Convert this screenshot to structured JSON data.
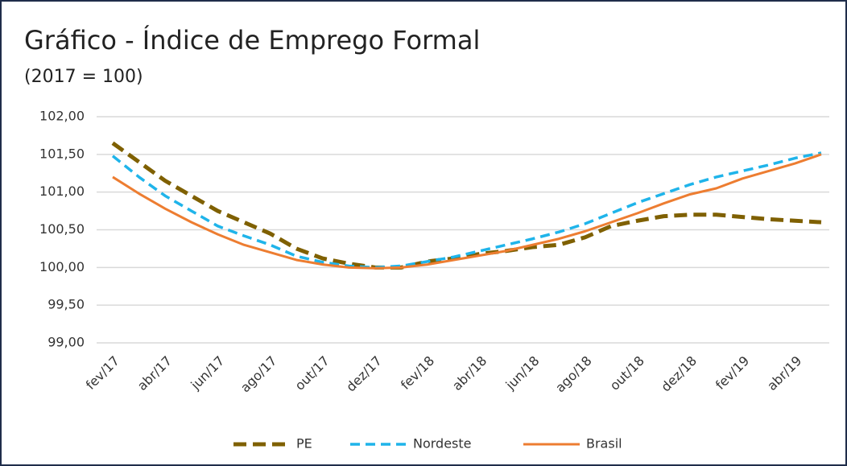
{
  "chart_data": {
    "type": "line",
    "title": "Gráfico - Índice de Emprego Formal",
    "subtitle": "(2017 = 100)",
    "categories": [
      "fev/17",
      null,
      "abr/17",
      null,
      "jun/17",
      null,
      "ago/17",
      null,
      "out/17",
      null,
      "dez/17",
      null,
      "fev/18",
      null,
      "abr/18",
      null,
      "jun/18",
      null,
      "ago/18",
      null,
      "out/18",
      null,
      "dez/18",
      null,
      "fev/19",
      null,
      "abr/19",
      null
    ],
    "series": [
      {
        "name": "PE",
        "color": "#7f6000",
        "style": "dash-dot",
        "values": [
          101.65,
          101.4,
          101.15,
          100.95,
          100.75,
          100.6,
          100.45,
          100.25,
          100.12,
          100.05,
          100.0,
          100.0,
          100.08,
          100.12,
          100.18,
          100.22,
          100.27,
          100.3,
          100.4,
          100.55,
          100.62,
          100.68,
          100.7,
          100.7,
          100.67,
          100.64,
          100.62,
          100.6
        ]
      },
      {
        "name": "Nordeste",
        "color": "#1fb4ea",
        "style": "dash",
        "values": [
          101.48,
          101.2,
          100.95,
          100.75,
          100.55,
          100.42,
          100.3,
          100.15,
          100.07,
          100.02,
          100.0,
          100.02,
          100.08,
          100.14,
          100.22,
          100.3,
          100.38,
          100.47,
          100.58,
          100.72,
          100.86,
          100.98,
          101.1,
          101.2,
          101.28,
          101.36,
          101.45,
          101.52
        ]
      },
      {
        "name": "Brasil",
        "color": "#ed7d31",
        "style": "solid",
        "values": [
          101.2,
          100.98,
          100.78,
          100.6,
          100.44,
          100.3,
          100.2,
          100.1,
          100.04,
          100.0,
          99.99,
          100.0,
          100.04,
          100.1,
          100.16,
          100.22,
          100.3,
          100.38,
          100.48,
          100.6,
          100.72,
          100.85,
          100.97,
          101.05,
          101.18,
          101.28,
          101.38,
          101.5
        ]
      }
    ],
    "ylim": [
      99,
      102
    ],
    "yticks": [
      {
        "value": 99,
        "label": "99,00"
      },
      {
        "value": 99.5,
        "label": "99,50"
      },
      {
        "value": 100,
        "label": "100,00"
      },
      {
        "value": 100.5,
        "label": "100,50"
      },
      {
        "value": 101,
        "label": "101,00"
      },
      {
        "value": 101.5,
        "label": "101,50"
      },
      {
        "value": 102,
        "label": "102,00"
      }
    ],
    "grid": true,
    "legend": "bottom"
  }
}
